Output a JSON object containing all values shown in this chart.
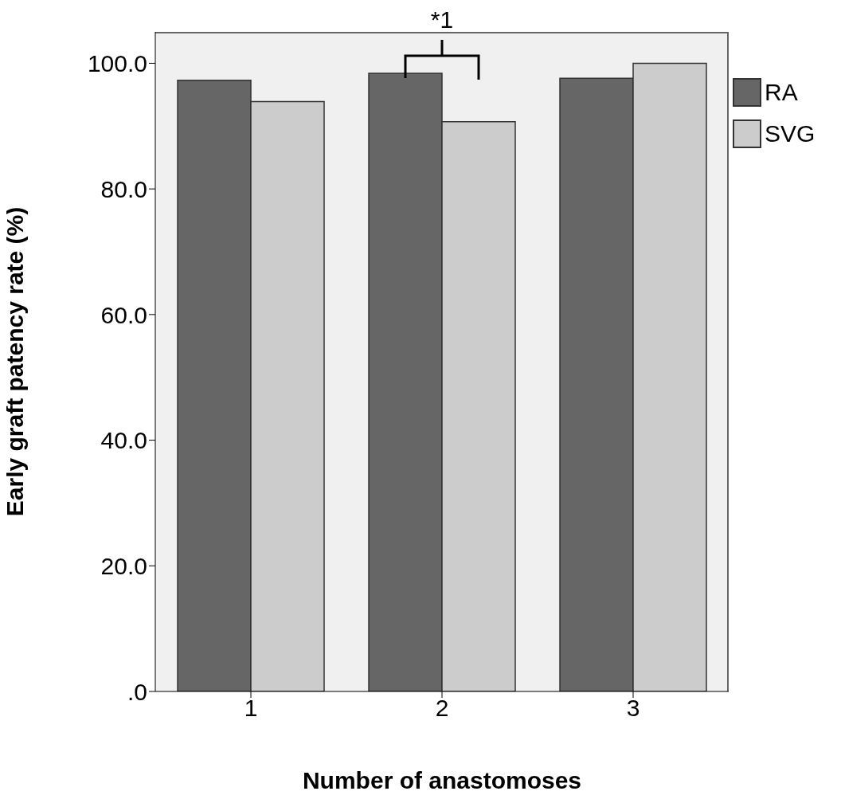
{
  "chart_data": {
    "type": "bar",
    "xlabel": "Number of anastomoses",
    "ylabel": "Early graft patency rate (%)",
    "categories": [
      "1",
      "2",
      "3"
    ],
    "series": [
      {
        "name": "RA",
        "color": "#666666",
        "values": [
          97.3,
          98.4,
          97.6
        ]
      },
      {
        "name": "SVG",
        "color": "#cccccc",
        "values": [
          93.9,
          90.7,
          100
        ]
      }
    ],
    "ylim": [
      0,
      105
    ],
    "yticks": [
      {
        "value": 0,
        "label": ".0"
      },
      {
        "value": 20,
        "label": "20.0"
      },
      {
        "value": 40,
        "label": "40.0"
      },
      {
        "value": 60,
        "label": "60.0"
      },
      {
        "value": 80,
        "label": "80.0"
      },
      {
        "value": 100,
        "label": "100.0"
      }
    ],
    "legend": "top right",
    "annotations": [
      "*1"
    ]
  }
}
